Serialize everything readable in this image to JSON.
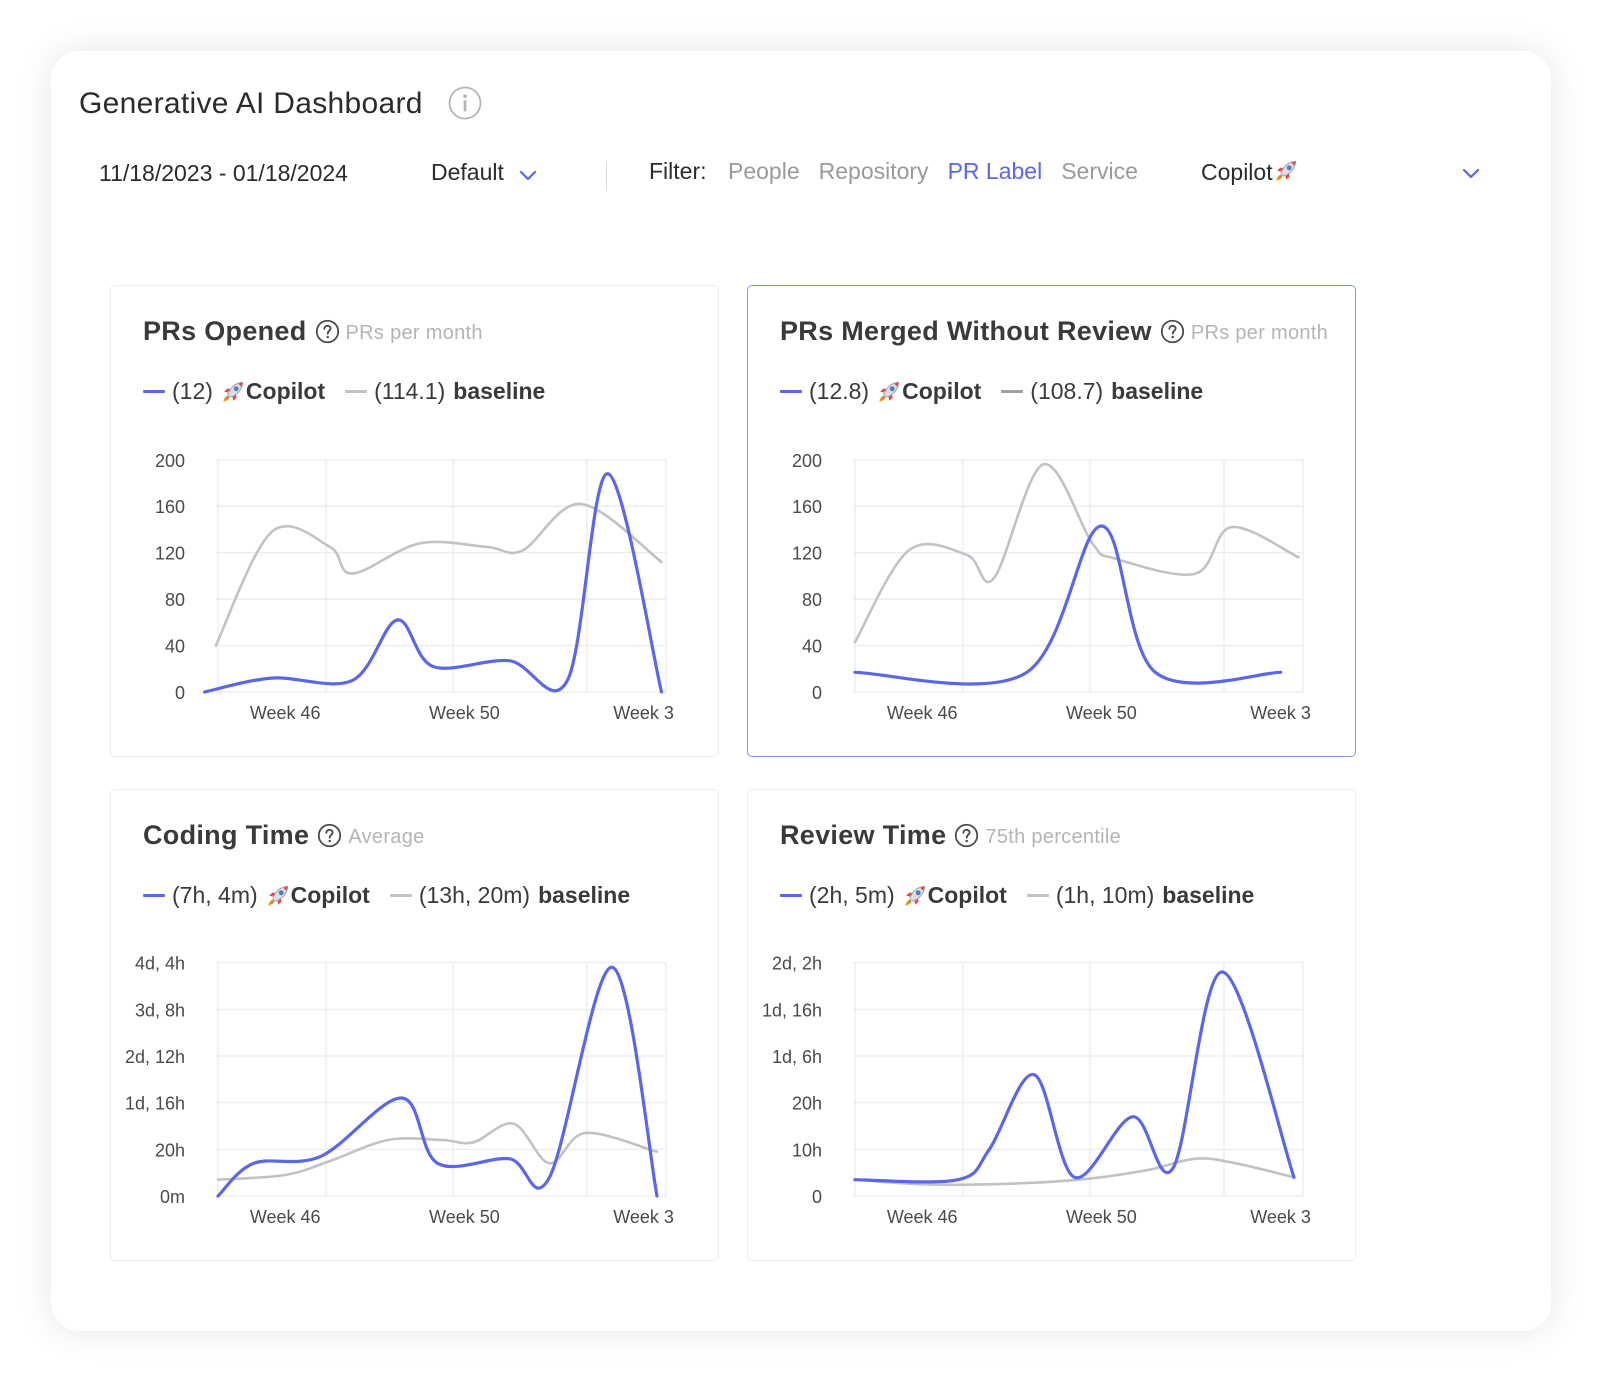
{
  "header": {
    "title": "Generative AI Dashboard",
    "info_icon": "info-circle-icon",
    "date_range": "11/18/2023 - 01/18/2024",
    "preset": "Default",
    "filter_label": "Filter:",
    "filter_tabs": [
      "People",
      "Repository",
      "PR Label",
      "Service"
    ],
    "active_filter_tab": "PR Label",
    "filter_value": "Copilot"
  },
  "colors": {
    "accent": "#5b66e8",
    "copilot_series": "#5b66e8",
    "baseline_series": "#c2c2c6",
    "baseline_series_dark": "#9e9ea3",
    "grid": "#e8e9ef",
    "selected_border": "#8a93ee"
  },
  "cards": [
    {
      "title": "PRs Opened",
      "subtitle": "PRs per month",
      "help_icon": "question-circle-icon",
      "legend": [
        {
          "value": "(12)",
          "name": "Copilot",
          "icon": "rocket-icon",
          "color": "#5b66e8"
        },
        {
          "value": "(114.1)",
          "name": "baseline",
          "color": "#c2c2c6"
        }
      ]
    },
    {
      "title": "PRs Merged Without Review",
      "subtitle": "PRs per month",
      "help_icon": "question-circle-icon",
      "legend": [
        {
          "value": "(12.8)",
          "name": "Copilot",
          "icon": "rocket-icon",
          "color": "#5b66e8"
        },
        {
          "value": "(108.7)",
          "name": "baseline",
          "color": "#9e9ea3"
        }
      ]
    },
    {
      "title": "Coding Time",
      "subtitle": "Average",
      "help_icon": "question-circle-icon",
      "legend": [
        {
          "value": "(7h, 4m)",
          "name": "Copilot",
          "icon": "rocket-icon",
          "color": "#5b66e8"
        },
        {
          "value": "(13h, 20m)",
          "name": "baseline",
          "color": "#c2c2c6"
        }
      ]
    },
    {
      "title": "Review Time",
      "subtitle": "75th percentile",
      "help_icon": "question-circle-icon",
      "legend": [
        {
          "value": "(2h, 5m)",
          "name": "Copilot",
          "icon": "rocket-icon",
          "color": "#5b66e8"
        },
        {
          "value": "(1h, 10m)",
          "name": "baseline",
          "color": "#c2c2c6"
        }
      ]
    }
  ],
  "chart_data": [
    {
      "type": "line",
      "title": "PRs Opened",
      "x": [
        0,
        1,
        2,
        3,
        4,
        5,
        6,
        7,
        8,
        9,
        10
      ],
      "x_ticks": [
        {
          "x": 1.5,
          "label": "Week 46"
        },
        {
          "x": 5.5,
          "label": "Week 50"
        },
        {
          "x": 9.5,
          "label": "Week 3"
        }
      ],
      "y_ticks": [
        {
          "v": 0,
          "label": "0"
        },
        {
          "v": 40,
          "label": "40"
        },
        {
          "v": 80,
          "label": "80"
        },
        {
          "v": 120,
          "label": "120"
        },
        {
          "v": 160,
          "label": "160"
        },
        {
          "v": 200,
          "label": "200"
        }
      ],
      "ylim": [
        0,
        205
      ],
      "series": [
        {
          "name": "Copilot",
          "color": "#5b66e8",
          "width": 3.2,
          "points": [
            [
              -0.3,
              0
            ],
            [
              1.2,
              12
            ],
            [
              3,
              10
            ],
            [
              4,
              62
            ],
            [
              4.8,
              22
            ],
            [
              6.5,
              27
            ],
            [
              7.8,
              10
            ],
            [
              8.7,
              188
            ],
            [
              9.9,
              0
            ]
          ]
        },
        {
          "name": "baseline",
          "color": "#c2c2c6",
          "width": 2.6,
          "points": [
            [
              -0.05,
              40
            ],
            [
              1.2,
              138
            ],
            [
              2.5,
              125
            ],
            [
              3,
              102
            ],
            [
              4.5,
              128
            ],
            [
              6,
              125
            ],
            [
              6.8,
              122
            ],
            [
              8.1,
              162
            ],
            [
              9.9,
              112
            ]
          ]
        }
      ],
      "grid": true
    },
    {
      "type": "line",
      "title": "PRs Merged Without Review",
      "x": [
        0,
        1,
        2,
        3,
        4,
        5,
        6,
        7,
        8,
        9,
        10
      ],
      "x_ticks": [
        {
          "x": 1.5,
          "label": "Week 46"
        },
        {
          "x": 5.5,
          "label": "Week 50"
        },
        {
          "x": 9.5,
          "label": "Week 3"
        }
      ],
      "y_ticks": [
        {
          "v": 0,
          "label": "0"
        },
        {
          "v": 40,
          "label": "40"
        },
        {
          "v": 80,
          "label": "80"
        },
        {
          "v": 120,
          "label": "120"
        },
        {
          "v": 160,
          "label": "160"
        },
        {
          "v": 200,
          "label": "200"
        }
      ],
      "ylim": [
        0,
        205
      ],
      "series": [
        {
          "name": "Copilot",
          "color": "#5b66e8",
          "width": 3.2,
          "points": [
            [
              0,
              17
            ],
            [
              3.8,
              16
            ],
            [
              5.5,
              143
            ],
            [
              6.7,
              17
            ],
            [
              9.5,
              17
            ]
          ]
        },
        {
          "name": "baseline",
          "color": "#c2c2c6",
          "width": 2.6,
          "points": [
            [
              0,
              43
            ],
            [
              1.2,
              122
            ],
            [
              2.5,
              118
            ],
            [
              3.1,
              98
            ],
            [
              4.2,
              196
            ],
            [
              5.3,
              128
            ],
            [
              5.8,
              115
            ],
            [
              7.6,
              102
            ],
            [
              8.4,
              142
            ],
            [
              9.9,
              116
            ]
          ]
        }
      ],
      "grid": true
    },
    {
      "type": "line",
      "title": "Coding Time",
      "x": [
        0,
        1,
        2,
        3,
        4,
        5,
        6,
        7,
        8,
        9,
        10
      ],
      "x_ticks": [
        {
          "x": 1.5,
          "label": "Week 46"
        },
        {
          "x": 5.5,
          "label": "Week 50"
        },
        {
          "x": 9.5,
          "label": "Week 3"
        }
      ],
      "y_ticks": [
        {
          "v": 0,
          "label": "0m"
        },
        {
          "v": 20,
          "label": "20h"
        },
        {
          "v": 40,
          "label": "1d, 16h"
        },
        {
          "v": 60,
          "label": "2d, 12h"
        },
        {
          "v": 80,
          "label": "3d, 8h"
        },
        {
          "v": 100,
          "label": "4d, 4h"
        }
      ],
      "ylim": [
        0,
        102
      ],
      "series": [
        {
          "name": "Copilot",
          "color": "#5b66e8",
          "width": 3.2,
          "points": [
            [
              0,
              0
            ],
            [
              0.8,
              14
            ],
            [
              2.3,
              17
            ],
            [
              4.1,
              42
            ],
            [
              4.9,
              14
            ],
            [
              6.5,
              16
            ],
            [
              7.4,
              8
            ],
            [
              8.8,
              98
            ],
            [
              9.8,
              0
            ]
          ]
        },
        {
          "name": "baseline",
          "color": "#c2c2c6",
          "width": 2.6,
          "points": [
            [
              0,
              7
            ],
            [
              1.5,
              9
            ],
            [
              2.5,
              15
            ],
            [
              3.8,
              24
            ],
            [
              5,
              24
            ],
            [
              5.7,
              23
            ],
            [
              6.6,
              31
            ],
            [
              7.4,
              14
            ],
            [
              8.2,
              27
            ],
            [
              9.8,
              19
            ]
          ]
        }
      ],
      "grid": true
    },
    {
      "type": "line",
      "title": "Review Time",
      "x": [
        0,
        1,
        2,
        3,
        4,
        5,
        6,
        7,
        8,
        9,
        10
      ],
      "x_ticks": [
        {
          "x": 1.5,
          "label": "Week 46"
        },
        {
          "x": 5.5,
          "label": "Week 50"
        },
        {
          "x": 9.5,
          "label": "Week 3"
        }
      ],
      "y_ticks": [
        {
          "v": 0,
          "label": "0"
        },
        {
          "v": 10,
          "label": "10h"
        },
        {
          "v": 20,
          "label": "20h"
        },
        {
          "v": 30,
          "label": "1d, 6h"
        },
        {
          "v": 40,
          "label": "1d, 16h"
        },
        {
          "v": 50,
          "label": "2d, 2h"
        }
      ],
      "ylim": [
        0,
        51
      ],
      "series": [
        {
          "name": "Copilot",
          "color": "#5b66e8",
          "width": 3.2,
          "points": [
            [
              0,
              3.5
            ],
            [
              2.3,
              3.5
            ],
            [
              3,
              10
            ],
            [
              4,
              26
            ],
            [
              4.9,
              4
            ],
            [
              6.2,
              17
            ],
            [
              7.1,
              6
            ],
            [
              8.2,
              48
            ],
            [
              9.8,
              4
            ]
          ]
        },
        {
          "name": "baseline",
          "color": "#c2c2c6",
          "width": 2.6,
          "points": [
            [
              0,
              3.5
            ],
            [
              1.5,
              2.5
            ],
            [
              3,
              2.5
            ],
            [
              5,
              3.5
            ],
            [
              6.5,
              5.5
            ],
            [
              7.6,
              8
            ],
            [
              8.5,
              7
            ],
            [
              9.8,
              4
            ]
          ]
        }
      ],
      "grid": true
    }
  ]
}
